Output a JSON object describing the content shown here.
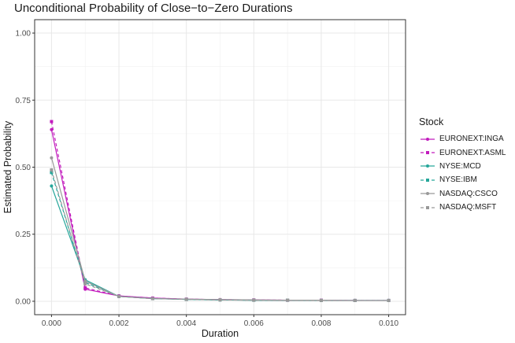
{
  "chart_data": {
    "type": "line",
    "title": "Unconditional Probability of Close−to−Zero Durations",
    "xlabel": "Duration",
    "ylabel": "Estimated Probability",
    "xlim": [
      -0.0005,
      0.0105
    ],
    "ylim": [
      -0.05,
      1.05
    ],
    "xticks": [
      0.0,
      0.002,
      0.004,
      0.006,
      0.008,
      0.01
    ],
    "xtick_labels": [
      "0.000",
      "0.002",
      "0.004",
      "0.006",
      "0.008",
      "0.010"
    ],
    "yticks": [
      0.0,
      0.25,
      0.5,
      0.75,
      1.0
    ],
    "ytick_labels": [
      "0.00",
      "0.25",
      "0.50",
      "0.75",
      "1.00"
    ],
    "grid": true,
    "legend_title": "Stock",
    "legend_position": "right",
    "x": [
      0.0,
      0.001,
      0.002,
      0.003,
      0.004,
      0.005,
      0.006,
      0.007,
      0.008,
      0.009,
      0.01
    ],
    "series": [
      {
        "name": "EURONEXT:INGA",
        "color": "#c21bbd",
        "dash": "solid",
        "marker": "circle",
        "values": [
          0.64,
          0.045,
          0.02,
          0.012,
          0.008,
          0.006,
          0.005,
          0.004,
          0.004,
          0.003,
          0.003
        ]
      },
      {
        "name": "EURONEXT:ASML",
        "color": "#c21bbd",
        "dash": "dashed",
        "marker": "square",
        "values": [
          0.67,
          0.05,
          0.02,
          0.012,
          0.008,
          0.006,
          0.005,
          0.004,
          0.004,
          0.003,
          0.003
        ]
      },
      {
        "name": "NYSE:MCD",
        "color": "#26a69a",
        "dash": "solid",
        "marker": "circle",
        "values": [
          0.43,
          0.08,
          0.018,
          0.01,
          0.007,
          0.005,
          0.004,
          0.004,
          0.003,
          0.003,
          0.003
        ]
      },
      {
        "name": "NYSE:IBM",
        "color": "#26a69a",
        "dash": "dashed",
        "marker": "square",
        "values": [
          0.48,
          0.07,
          0.018,
          0.01,
          0.007,
          0.005,
          0.004,
          0.004,
          0.003,
          0.003,
          0.003
        ]
      },
      {
        "name": "NASDAQ:CSCO",
        "color": "#999999",
        "dash": "solid",
        "marker": "circle",
        "values": [
          0.535,
          0.075,
          0.018,
          0.01,
          0.008,
          0.006,
          0.005,
          0.004,
          0.004,
          0.003,
          0.003
        ]
      },
      {
        "name": "NASDAQ:MSFT",
        "color": "#999999",
        "dash": "dashed",
        "marker": "square",
        "values": [
          0.49,
          0.065,
          0.018,
          0.01,
          0.007,
          0.005,
          0.004,
          0.004,
          0.003,
          0.003,
          0.003
        ]
      }
    ]
  }
}
